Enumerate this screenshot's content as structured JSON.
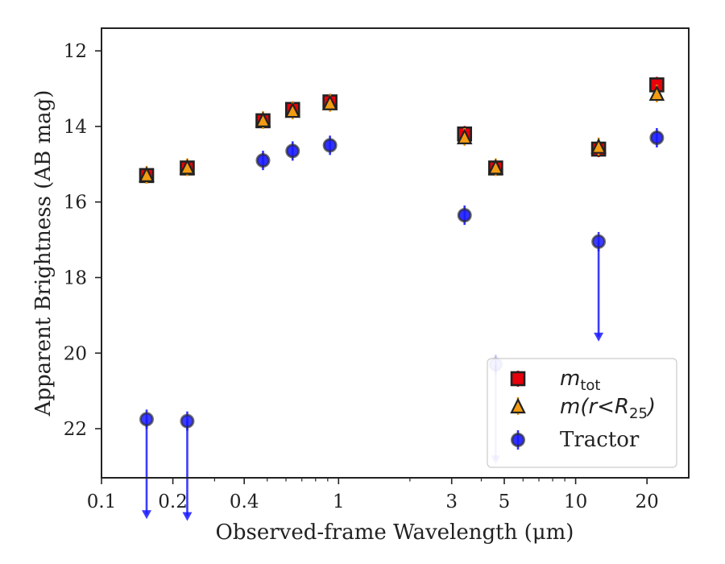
{
  "chart_data": {
    "type": "scatter",
    "xlabel": "Observed-frame Wavelength (μm)",
    "ylabel": "Apparent Brightness (AB mag)",
    "xscale": "log",
    "xlim": [
      0.1,
      30
    ],
    "ylim": [
      23.3,
      11.4
    ],
    "y_inverted": true,
    "xticks": [
      0.1,
      0.2,
      0.4,
      1,
      3,
      5,
      10,
      20
    ],
    "xtick_labels": [
      "0.1",
      "0.2",
      "0.4",
      "1",
      "3",
      "5",
      "10",
      "20"
    ],
    "yticks": [
      12,
      14,
      16,
      18,
      20,
      22
    ],
    "ytick_labels": [
      "12",
      "14",
      "16",
      "18",
      "20",
      "22"
    ],
    "grid": false,
    "legend_position": "lower-right",
    "series": [
      {
        "name": "m_tot",
        "legend_main": "m",
        "legend_sub": "tot",
        "marker": "square",
        "color": "#e8000b",
        "x": [
          0.155,
          0.23,
          0.48,
          0.64,
          0.92,
          3.4,
          4.6,
          12.5,
          22
        ],
        "y": [
          15.3,
          15.1,
          13.85,
          13.55,
          13.35,
          14.2,
          15.1,
          14.6,
          12.9
        ]
      },
      {
        "name": "m(r<R25)",
        "legend_main": "m(r<R",
        "legend_sub": "25",
        "legend_tail": ")",
        "marker": "triangle",
        "color": "#f39c12",
        "x": [
          0.155,
          0.23,
          0.48,
          0.64,
          0.92,
          3.4,
          4.6,
          12.5,
          22
        ],
        "y": [
          15.3,
          15.1,
          13.85,
          13.6,
          13.4,
          14.3,
          15.1,
          14.55,
          13.15
        ]
      },
      {
        "name": "Tractor",
        "legend_main": "Tractor",
        "marker": "circle",
        "color": "#1a1aff",
        "x": [
          0.155,
          0.23,
          0.48,
          0.64,
          0.92,
          3.4,
          4.6,
          12.5,
          22
        ],
        "y": [
          21.75,
          21.8,
          14.9,
          14.65,
          14.5,
          16.35,
          20.3,
          17.05,
          14.3
        ],
        "upper_limit": [
          true,
          true,
          false,
          false,
          false,
          false,
          true,
          true,
          false
        ]
      }
    ]
  }
}
